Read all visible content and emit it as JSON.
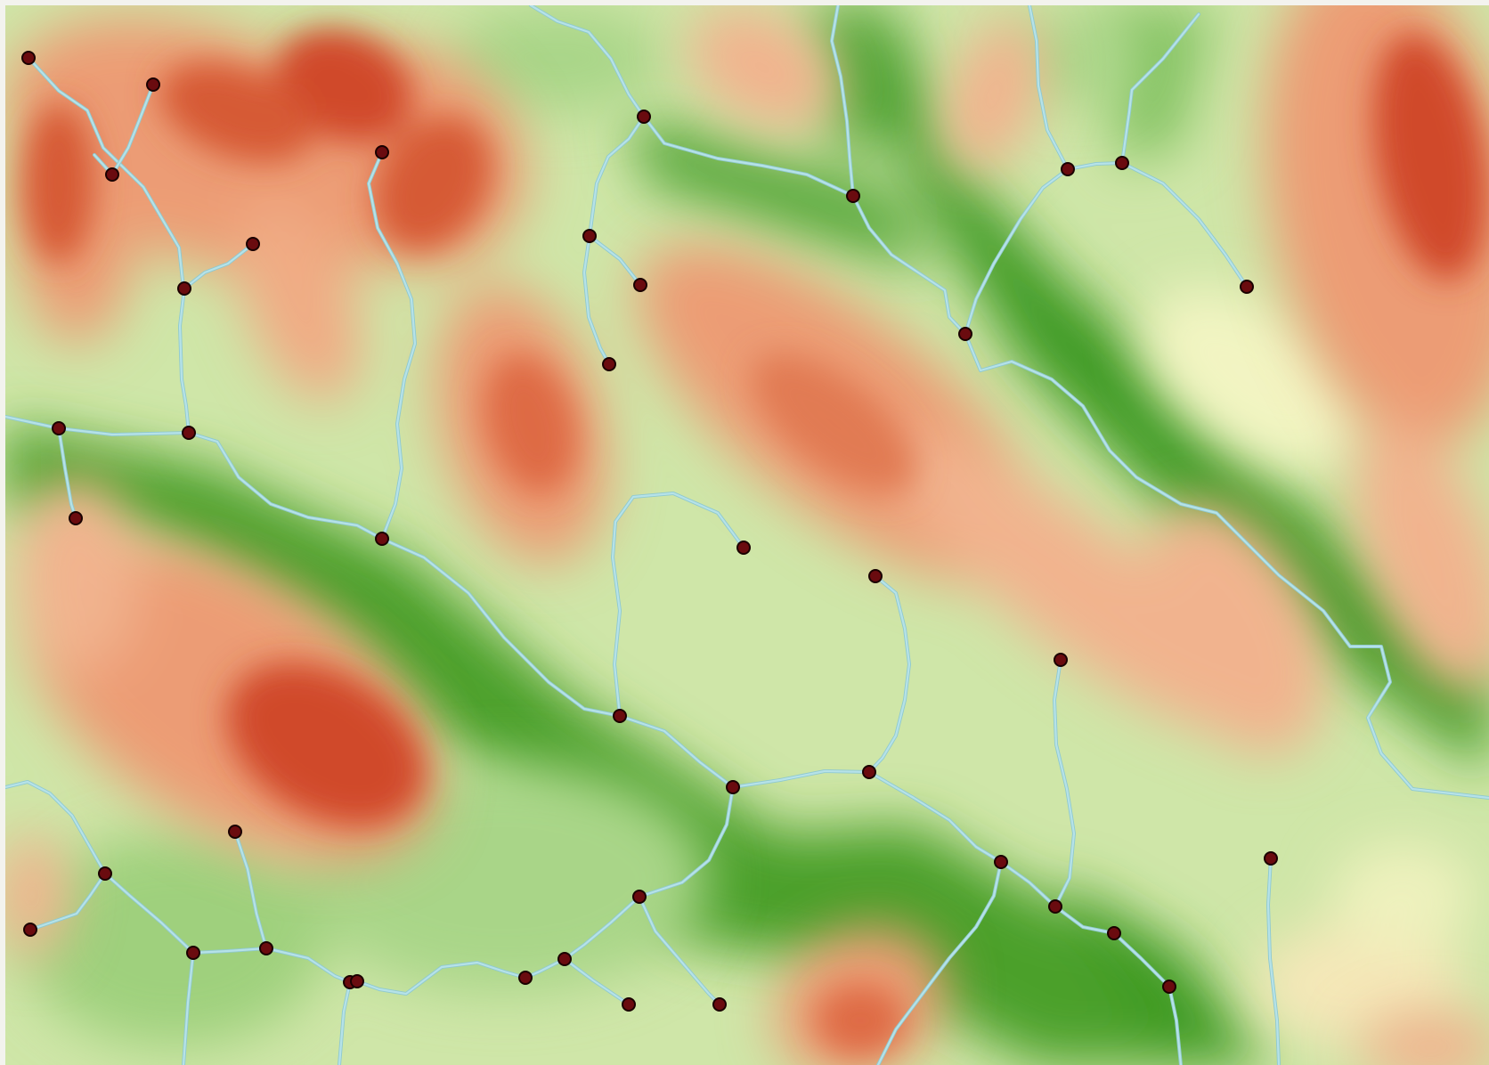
{
  "map": {
    "kind": "elevation-raster-with-stream-network",
    "colors": {
      "high": "#d0482b",
      "mid_high": "#ec9c74",
      "mid": "#f7dfb6",
      "mid_low": "#f6f6c4",
      "low_light": "#cfe6a8",
      "low": "#86c465",
      "valley": "#3e9a24",
      "stream": "#b6e2e8",
      "stream_outline": "#8fc9d0",
      "node_fill": "#6a0b0f",
      "node_stroke": "#1a0000"
    },
    "legend": null
  }
}
